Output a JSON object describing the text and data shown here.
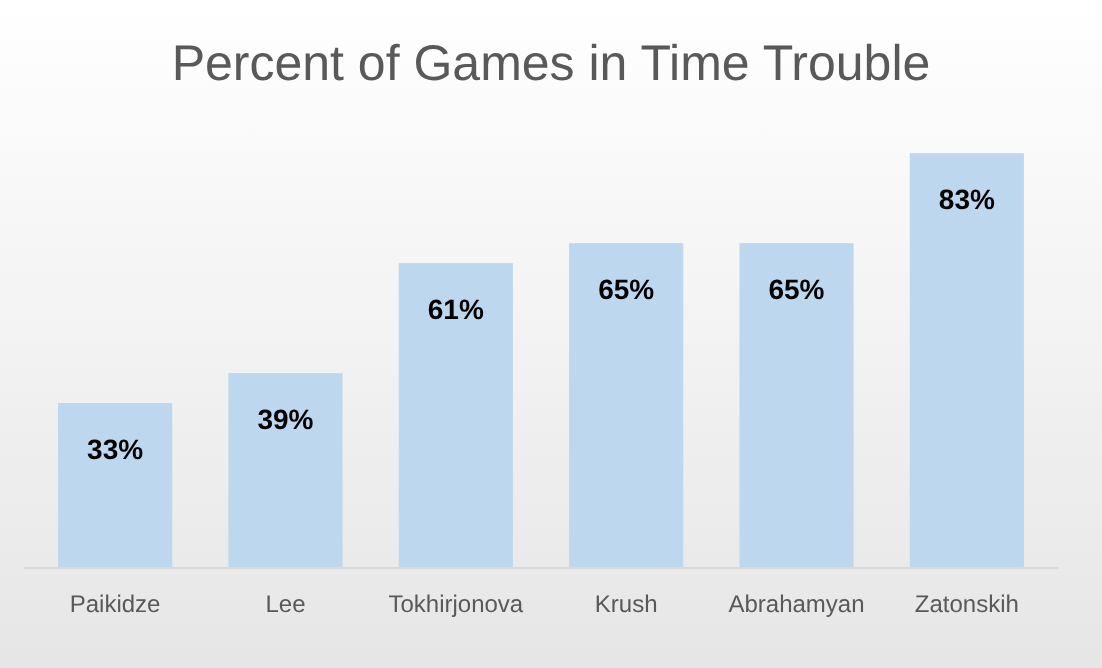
{
  "chart_data": {
    "type": "bar",
    "title": "Percent of Games in Time Trouble",
    "categories": [
      "Paikidze",
      "Lee",
      "Tokhirjonova",
      "Krush",
      "Abrahamyan",
      "Zatonskih"
    ],
    "values": [
      33,
      39,
      61,
      65,
      65,
      83
    ],
    "value_labels": [
      "33%",
      "39%",
      "61%",
      "65%",
      "65%",
      "83%"
    ],
    "color": "#bdd7ee"
  }
}
